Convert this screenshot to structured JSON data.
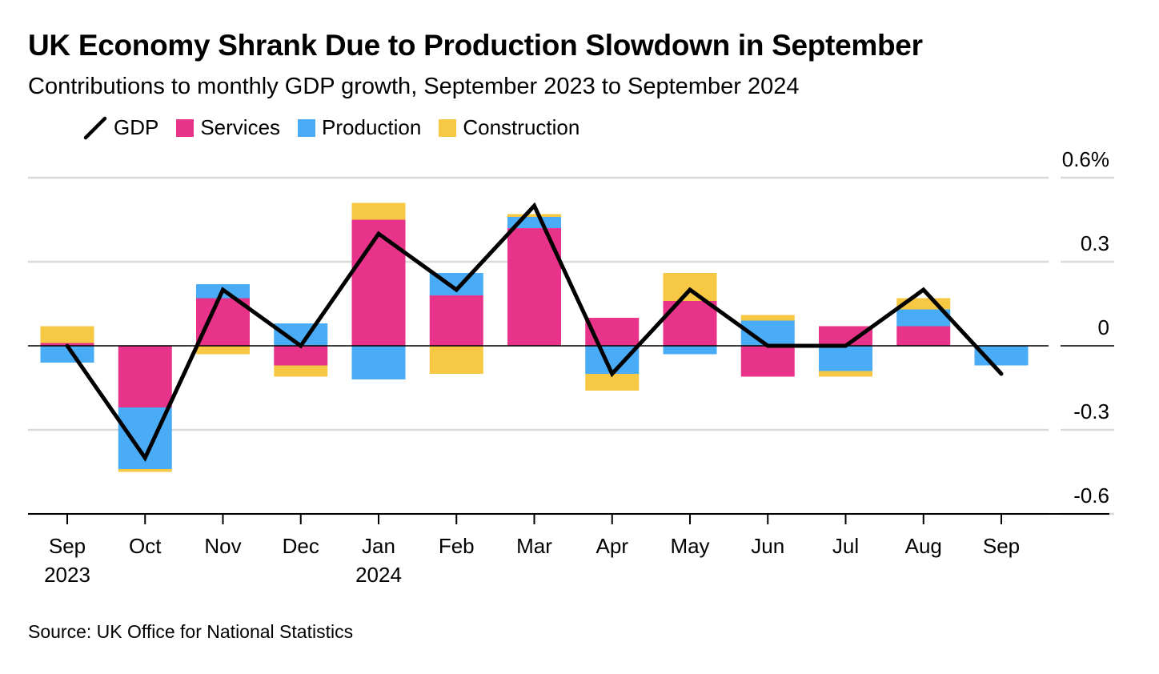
{
  "title": "UK Economy Shrank Due to Production Slowdown in September",
  "subtitle": "Contributions to monthly GDP growth, September 2023 to September 2024",
  "source": "Source: UK Office for National Statistics",
  "legend": {
    "gdp": "GDP",
    "services": "Services",
    "production": "Production",
    "construction": "Construction"
  },
  "colors": {
    "services": "#e8338a",
    "production": "#4aacf6",
    "construction": "#f7c843",
    "gdp": "#000000",
    "grid": "#d9d9d9"
  },
  "chart_data": {
    "type": "bar",
    "stacked": true,
    "categories": [
      "Sep",
      "Oct",
      "Nov",
      "Dec",
      "Jan",
      "Feb",
      "Mar",
      "Apr",
      "May",
      "Jun",
      "Jul",
      "Aug",
      "Sep"
    ],
    "category_sublabels": [
      "2023",
      "",
      "",
      "",
      "2024",
      "",
      "",
      "",
      "",
      "",
      "",
      "",
      ""
    ],
    "series": [
      {
        "name": "Services",
        "type": "bar",
        "values": [
          0.01,
          -0.22,
          0.17,
          -0.07,
          0.45,
          0.18,
          0.42,
          0.1,
          0.16,
          -0.11,
          0.07,
          0.07,
          0.0
        ]
      },
      {
        "name": "Production",
        "type": "bar",
        "values": [
          -0.06,
          -0.22,
          0.05,
          0.08,
          -0.12,
          0.08,
          0.04,
          -0.1,
          -0.03,
          0.09,
          -0.09,
          0.06,
          -0.07
        ]
      },
      {
        "name": "Construction",
        "type": "bar",
        "values": [
          0.06,
          -0.01,
          -0.03,
          -0.04,
          0.06,
          -0.1,
          0.01,
          -0.06,
          0.1,
          0.02,
          -0.02,
          0.04,
          0.0
        ]
      },
      {
        "name": "GDP",
        "type": "line",
        "values": [
          0.0,
          -0.4,
          0.2,
          0.0,
          0.4,
          0.2,
          0.5,
          -0.1,
          0.2,
          0.0,
          0.0,
          0.2,
          -0.1
        ]
      }
    ],
    "yticks": [
      0.6,
      0.3,
      0,
      -0.3,
      -0.6
    ],
    "ytick_labels": [
      "0.6%",
      "0.3",
      "0",
      "-0.3",
      "-0.6"
    ],
    "ylim": [
      -0.6,
      0.6
    ],
    "xlabel": "",
    "ylabel": "",
    "grid": true,
    "legend_position": "top-left"
  }
}
